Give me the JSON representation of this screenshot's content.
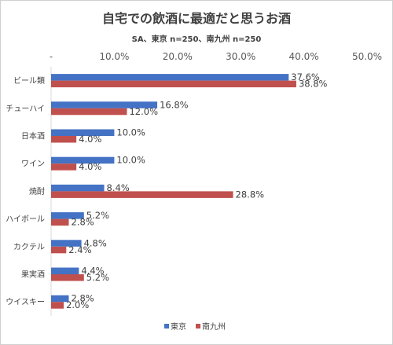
{
  "title": "自宅での飲酒に最適だと思うお酒",
  "subtitle": "SA、東京 n=250、南九州 n=250",
  "chart_data": {
    "type": "bar",
    "orientation": "horizontal",
    "categories": [
      "ビール類",
      "チューハイ",
      "日本酒",
      "ワイン",
      "焼酎",
      "ハイボール",
      "カクテル",
      "果実酒",
      "ウイスキー"
    ],
    "series": [
      {
        "name": "東京",
        "color": "#4472c4",
        "values": [
          37.6,
          16.8,
          10.0,
          10.0,
          8.4,
          5.2,
          4.8,
          4.4,
          2.8
        ]
      },
      {
        "name": "南九州",
        "color": "#c0504d",
        "values": [
          38.8,
          12.0,
          4.0,
          4.0,
          28.8,
          2.8,
          2.4,
          5.2,
          2.0
        ]
      }
    ],
    "xlim": [
      0,
      50
    ],
    "ticks": [
      "-",
      "10.0%",
      "20.0%",
      "30.0%",
      "40.0%",
      "50.0%"
    ],
    "data_labels": [
      [
        "37.6%",
        "16.8%",
        "10.0%",
        "10.0%",
        "8.4%",
        "5.2%",
        "4.8%",
        "4.4%",
        "2.8%"
      ],
      [
        "38.8%",
        "12.0%",
        "4.0%",
        "4.0%",
        "28.8%",
        "2.8%",
        "2.4%",
        "5.2%",
        "2.0%"
      ]
    ],
    "legend_position": "bottom",
    "grid": false
  }
}
